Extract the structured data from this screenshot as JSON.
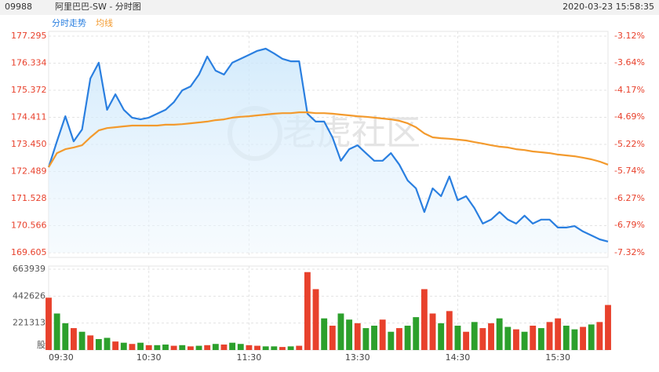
{
  "header": {
    "code": "09988",
    "name": "阿里巴巴-SW - 分时图",
    "time": "2020-03-23 15:58:35"
  },
  "chart_data": {
    "type": "line",
    "legend": "top-left",
    "grid": true,
    "watermark": "老虎社区",
    "categories": [
      "09:30",
      null,
      null,
      null,
      null,
      null,
      null,
      null,
      null,
      null,
      null,
      null,
      "10:30",
      null,
      null,
      null,
      null,
      null,
      null,
      null,
      null,
      null,
      null,
      null,
      "11:30",
      null,
      null,
      null,
      null,
      null,
      null,
      null,
      null,
      null,
      null,
      null,
      null,
      "13:30",
      null,
      null,
      null,
      null,
      null,
      null,
      null,
      null,
      null,
      null,
      null,
      "14:30",
      null,
      null,
      null,
      null,
      null,
      null,
      null,
      null,
      null,
      null,
      null,
      "15:30",
      null,
      null,
      null,
      null,
      null,
      null
    ],
    "ylim": [
      169.605,
      177.295
    ],
    "yticks": [
      169.605,
      170.566,
      171.528,
      172.489,
      {
        "value": 173.45,
        "label": "173.450"
      },
      174.411,
      175.372,
      176.334,
      177.295
    ],
    "y2lim": [
      -7.32,
      -3.12
    ],
    "y2ticks": [
      {
        "value": -7.32,
        "label": "-7.32%"
      },
      {
        "value": -6.79,
        "label": "-6.79%"
      },
      {
        "value": -6.27,
        "label": "-6.27%"
      },
      {
        "value": -5.74,
        "label": "-5.74%"
      },
      {
        "value": -5.22,
        "label": "-5.22%"
      },
      {
        "value": -4.69,
        "label": "-4.69%"
      },
      {
        "value": -4.17,
        "label": "-4.17%"
      },
      {
        "value": -3.64,
        "label": "-3.64%"
      },
      {
        "value": -3.12,
        "label": "-3.12%"
      }
    ],
    "series": [
      {
        "name": "分时走势",
        "color": "#2a7fe0",
        "values": [
          172.64,
          173.56,
          174.45,
          173.56,
          173.98,
          175.79,
          176.35,
          174.68,
          175.23,
          174.68,
          174.4,
          174.34,
          174.4,
          174.54,
          174.68,
          174.95,
          175.37,
          175.51,
          175.93,
          176.57,
          176.07,
          175.93,
          176.35,
          176.49,
          176.63,
          176.77,
          176.85,
          176.68,
          176.49,
          176.4,
          176.4,
          174.54,
          174.26,
          174.26,
          173.7,
          172.87,
          173.28,
          173.42,
          173.14,
          172.87,
          172.87,
          173.14,
          172.73,
          172.17,
          171.89,
          171.05,
          171.89,
          171.61,
          172.31,
          171.47,
          171.61,
          171.19,
          170.64,
          170.78,
          171.05,
          170.78,
          170.64,
          170.92,
          170.64,
          170.78,
          170.78,
          170.5,
          170.5,
          170.55,
          170.36,
          170.22,
          170.08,
          170.0
        ]
      },
      {
        "name": "均线",
        "color": "#f39a2d",
        "values": [
          172.64,
          173.14,
          173.28,
          173.34,
          173.42,
          173.7,
          173.95,
          174.03,
          174.06,
          174.09,
          174.12,
          174.12,
          174.12,
          174.12,
          174.15,
          174.15,
          174.17,
          174.2,
          174.23,
          174.26,
          174.31,
          174.34,
          174.4,
          174.43,
          174.45,
          174.48,
          174.51,
          174.54,
          174.56,
          174.56,
          174.59,
          174.59,
          174.56,
          174.56,
          174.54,
          174.51,
          174.48,
          174.45,
          174.43,
          174.4,
          174.37,
          174.34,
          174.29,
          174.2,
          174.06,
          173.84,
          173.7,
          173.67,
          173.65,
          173.62,
          173.59,
          173.53,
          173.48,
          173.42,
          173.37,
          173.34,
          173.28,
          173.25,
          173.2,
          173.17,
          173.14,
          173.09,
          173.06,
          173.03,
          172.98,
          172.92,
          172.84,
          172.73
        ]
      }
    ],
    "volume": {
      "type": "bar",
      "ylim": [
        0,
        663939
      ],
      "yticks": [
        {
          "value": 0,
          "label": "股"
        },
        221313,
        442626,
        663939
      ],
      "values": [
        430000,
        300000,
        220000,
        180000,
        150000,
        120000,
        90000,
        100000,
        70000,
        60000,
        50000,
        60000,
        40000,
        40000,
        45000,
        35000,
        40000,
        30000,
        35000,
        40000,
        50000,
        45000,
        60000,
        50000,
        40000,
        35000,
        30000,
        30000,
        25000,
        30000,
        35000,
        640000,
        500000,
        260000,
        200000,
        300000,
        250000,
        220000,
        180000,
        200000,
        250000,
        150000,
        180000,
        200000,
        270000,
        500000,
        300000,
        220000,
        320000,
        200000,
        150000,
        230000,
        180000,
        220000,
        260000,
        190000,
        170000,
        150000,
        200000,
        180000,
        230000,
        260000,
        200000,
        170000,
        190000,
        210000,
        230000,
        370000
      ],
      "colors": [
        "#e8412c",
        "#2ca02c",
        "#2ca02c",
        "#e8412c",
        "#2ca02c",
        "#e8412c",
        "#2ca02c",
        "#2ca02c",
        "#e8412c",
        "#2ca02c",
        "#e8412c",
        "#2ca02c",
        "#e8412c",
        "#2ca02c",
        "#2ca02c",
        "#e8412c",
        "#2ca02c",
        "#e8412c",
        "#2ca02c",
        "#e8412c",
        "#2ca02c",
        "#e8412c",
        "#2ca02c",
        "#2ca02c",
        "#e8412c",
        "#e8412c",
        "#2ca02c",
        "#2ca02c",
        "#e8412c",
        "#2ca02c",
        "#e8412c",
        "#e8412c",
        "#e8412c",
        "#2ca02c",
        "#e8412c",
        "#2ca02c",
        "#2ca02c",
        "#e8412c",
        "#2ca02c",
        "#2ca02c",
        "#e8412c",
        "#2ca02c",
        "#e8412c",
        "#2ca02c",
        "#2ca02c",
        "#e8412c",
        "#e8412c",
        "#2ca02c",
        "#e8412c",
        "#2ca02c",
        "#e8412c",
        "#2ca02c",
        "#e8412c",
        "#e8412c",
        "#2ca02c",
        "#2ca02c",
        "#e8412c",
        "#2ca02c",
        "#e8412c",
        "#2ca02c",
        "#e8412c",
        "#e8412c",
        "#2ca02c",
        "#2ca02c",
        "#e8412c",
        "#2ca02c",
        "#e8412c",
        "#e8412c"
      ]
    }
  }
}
